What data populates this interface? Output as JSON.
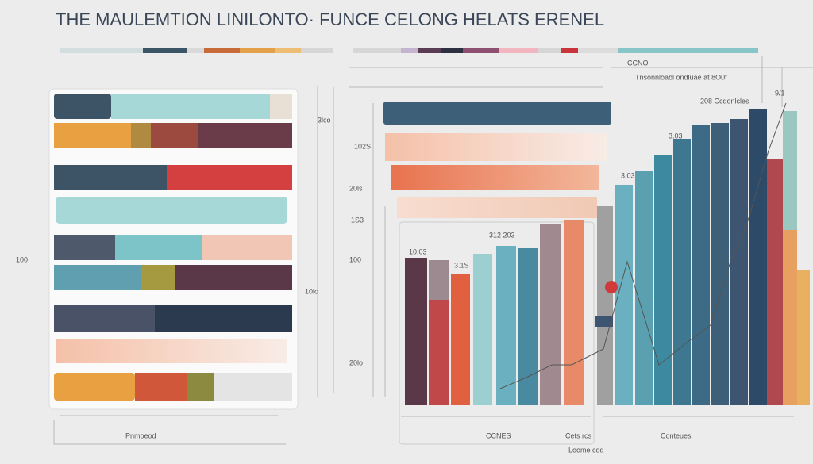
{
  "header": {
    "title": "THE MAULEMTION LINILONTO· FUNCE CELONG HELATS ERENEL"
  },
  "labels": [
    "100",
    "Pnmoeod",
    "CCNES",
    "Cets  rcs",
    "Conteues",
    "Loome cod",
    "10.03",
    "3.1S",
    "312 203",
    "3.03",
    "3.03",
    "9/1",
    "208 Ccdonlcles",
    "Tnsonnloabl ondluae at 8O0f",
    "CCNO",
    "20ls",
    "100",
    "20lo",
    "1S3",
    "3lco",
    "102S",
    "10lo"
  ]
}
